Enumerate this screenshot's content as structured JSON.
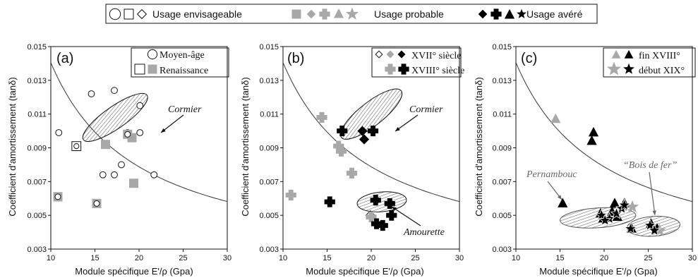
{
  "top_legend": [
    {
      "key": "envisageable",
      "label": "Usage envisageable"
    },
    {
      "key": "probable",
      "label": "Usage probable"
    },
    {
      "key": "avere",
      "label": "Usage avéré"
    }
  ],
  "colors": {
    "grey": "#a8a8a8",
    "black": "#000000",
    "hatch": "#555555"
  },
  "chart_data": [
    {
      "type": "scatter",
      "panel": "(a)",
      "xlabel": "Module spécifique E'/ρ (Gpa)",
      "ylabel": "Coefficient d'amortissement (tanδ)",
      "xlim": [
        10,
        30
      ],
      "ylim": [
        0.003,
        0.015
      ],
      "xticks": [
        "10",
        "15",
        "20",
        "25",
        "30"
      ],
      "yticks": [
        "0.003",
        "0.005",
        "0.007",
        "0.009",
        "0.011",
        "0.013",
        "0.015"
      ],
      "legend": [
        {
          "label": "Moyen-âge",
          "markers": [
            "circle-open"
          ]
        },
        {
          "label": "Renaissance",
          "markers": [
            "square-open",
            "square-grey"
          ]
        }
      ],
      "annotations": [
        {
          "text": "Cormier",
          "style": "dark"
        }
      ],
      "ellipses": [
        {
          "name": "Cormier",
          "cx": 17.3,
          "cy": 0.0108,
          "rx": 4.4,
          "ry": 0.00065,
          "angle": -35
        }
      ],
      "series": [
        {
          "name": "Moyen-âge",
          "marker": "circle-open",
          "points": [
            [
              10.9,
              0.0099
            ],
            [
              14.6,
              0.0122
            ],
            [
              17.2,
              0.0124
            ],
            [
              20.1,
              0.0115
            ],
            [
              20.1,
              0.0099
            ],
            [
              18.7,
              0.0099
            ],
            [
              15.9,
              0.0074
            ],
            [
              17.2,
              0.0074
            ],
            [
              18.0,
              0.008
            ],
            [
              21.7,
              0.0074
            ]
          ]
        },
        {
          "name": "Renaissance",
          "marker": "square-open",
          "points": [
            [
              12.9,
              0.0091
            ]
          ]
        },
        {
          "name": "Renaissance",
          "marker": "square-grey",
          "points": [
            [
              16.2,
              0.0092
            ],
            [
              19.2,
              0.0096
            ],
            [
              19.4,
              0.0069
            ],
            [
              10.8,
              0.0061
            ],
            [
              15.2,
              0.0057
            ]
          ]
        },
        {
          "name": "Renaissance",
          "marker": "square-grey-circle",
          "points": [
            [
              18.7,
              0.0098
            ],
            [
              10.8,
              0.0061
            ],
            [
              15.2,
              0.0057
            ]
          ]
        }
      ]
    },
    {
      "type": "scatter",
      "panel": "(b)",
      "xlabel": "Module spécifique E'/ρ (Gpa)",
      "ylabel": "Coefficient d'amortissement (tanδ)",
      "xlim": [
        10,
        30
      ],
      "ylim": [
        0.003,
        0.015
      ],
      "xticks": [
        "10",
        "15",
        "20",
        "25",
        "30"
      ],
      "yticks": [
        "0.003",
        "0.005",
        "0.007",
        "0.009",
        "0.011",
        "0.013",
        "0.015"
      ],
      "legend": [
        {
          "label": "XVII° siècle",
          "markers": [
            "diamond-open",
            "diamond-grey",
            "diamond-black"
          ]
        },
        {
          "label": "XVIII° siècle",
          "markers": [
            "cross-grey",
            "cross-black"
          ]
        }
      ],
      "annotations": [
        {
          "text": "Cormier",
          "style": "dark"
        },
        {
          "text": "Amourette",
          "style": "dark"
        }
      ],
      "ellipses": [
        {
          "name": "Cormier",
          "cx": 20.0,
          "cy": 0.011,
          "rx": 4.3,
          "ry": 0.0007,
          "angle": -38
        },
        {
          "name": "Amourette",
          "cx": 21.2,
          "cy": 0.0058,
          "rx": 2.8,
          "ry": 0.00045,
          "angle": -5
        }
      ],
      "series": [
        {
          "name": "XVII° siècle",
          "marker": "diamond-black",
          "points": [
            [
              19.0,
              0.01
            ],
            [
              19.2,
              0.0095
            ]
          ]
        },
        {
          "name": "XVII° siècle",
          "marker": "diamond-open",
          "points": [
            [
              15.3,
              0.0058
            ],
            [
              22.1,
              0.0057
            ],
            [
              19.9,
              0.005
            ],
            [
              20.5,
              0.0059
            ]
          ]
        },
        {
          "name": "XVIII° siècle",
          "marker": "cross-grey",
          "points": [
            [
              14.4,
              0.0108
            ],
            [
              16.3,
              0.0091
            ],
            [
              16.6,
              0.0088
            ],
            [
              17.8,
              0.0075
            ],
            [
              10.9,
              0.0062
            ],
            [
              20.0,
              0.0049
            ]
          ]
        },
        {
          "name": "XVIII° siècle",
          "marker": "cross-black",
          "points": [
            [
              16.7,
              0.01
            ],
            [
              20.2,
              0.01
            ],
            [
              20.5,
              0.0059
            ],
            [
              15.3,
              0.0058
            ],
            [
              22.1,
              0.0057
            ],
            [
              22.3,
              0.005
            ],
            [
              20.6,
              0.0045
            ],
            [
              21.3,
              0.0044
            ]
          ]
        }
      ]
    },
    {
      "type": "scatter",
      "panel": "(c)",
      "xlabel": "Module spécifique E'/ρ (Gpa)",
      "ylabel": "Coefficient d'amortissement (tanδ)",
      "xlim": [
        10,
        30
      ],
      "ylim": [
        0.003,
        0.015
      ],
      "xticks": [
        "10",
        "15",
        "20",
        "25",
        "30"
      ],
      "yticks": [
        "0.003",
        "0.005",
        "0.007",
        "0.009",
        "0.011",
        "0.013",
        "0.015"
      ],
      "legend": [
        {
          "label": "fin XVIII°",
          "markers": [
            "triangle-grey",
            "triangle-black"
          ]
        },
        {
          "label": "début XIX°",
          "markers": [
            "star-grey",
            "star-black"
          ]
        }
      ],
      "annotations": [
        {
          "text": "Pernambouc",
          "style": "grey"
        },
        {
          "text": "“Bois de fer”",
          "style": "grey"
        }
      ],
      "ellipses": [
        {
          "name": "Pernambouc",
          "cx": 19.3,
          "cy": 0.00485,
          "rx": 4.3,
          "ry": 0.00052,
          "angle": -4
        },
        {
          "name": "Bois de fer",
          "cx": 25.6,
          "cy": 0.00435,
          "rx": 3.0,
          "ry": 0.00045,
          "angle": -4
        }
      ],
      "series": [
        {
          "name": "fin XVIII°",
          "marker": "triangle-grey",
          "points": [
            [
              14.5,
              0.0107
            ]
          ]
        },
        {
          "name": "fin XVIII°",
          "marker": "triangle-black",
          "points": [
            [
              18.8,
              0.0099
            ],
            [
              18.6,
              0.0094
            ],
            [
              15.3,
              0.0057
            ],
            [
              19.6,
              0.0051
            ],
            [
              20.9,
              0.0052
            ],
            [
              21.2,
              0.0057
            ],
            [
              22.3,
              0.0057
            ],
            [
              19.9,
              0.0048
            ],
            [
              21.5,
              0.0049
            ],
            [
              23.1,
              0.0042
            ],
            [
              25.3,
              0.0045
            ],
            [
              26.0,
              0.0042
            ]
          ]
        },
        {
          "name": "début XIX°",
          "marker": "star-grey",
          "points": [
            [
              23.2,
              0.0055
            ],
            [
              26.3,
              0.0041
            ]
          ]
        },
        {
          "name": "début XIX°",
          "marker": "star-black",
          "points": [
            [
              19.7,
              0.005
            ],
            [
              20.6,
              0.0048
            ],
            [
              21.4,
              0.0051
            ],
            [
              22.0,
              0.0054
            ],
            [
              22.3,
              0.0056
            ],
            [
              23.0,
              0.0042
            ],
            [
              25.2,
              0.0044
            ],
            [
              25.7,
              0.0041
            ],
            [
              20.1,
              0.0047
            ]
          ]
        }
      ]
    }
  ]
}
